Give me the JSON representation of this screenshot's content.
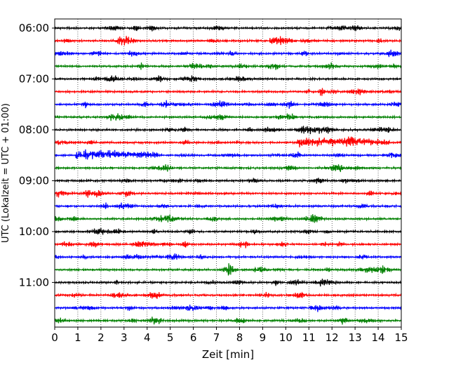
{
  "chart_data": {
    "type": "line",
    "title": "",
    "xlabel": "Zeit  [min]",
    "ylabel": "UTC (Lokalzeit = UTC + 01:00)",
    "xlim": [
      0,
      15
    ],
    "x_ticks": [
      0,
      1,
      2,
      3,
      4,
      5,
      6,
      7,
      8,
      9,
      10,
      11,
      12,
      13,
      14,
      15
    ],
    "x_tick_labels": [
      "0",
      "1",
      "2",
      "3",
      "4",
      "5",
      "6",
      "7",
      "8",
      "9",
      "10",
      "11",
      "12",
      "13",
      "14",
      "15"
    ],
    "y_tick_labels": [
      "06:00",
      "07:00",
      "08:00",
      "09:00",
      "10:00",
      "11:00"
    ],
    "y_tick_rows": [
      0,
      4,
      8,
      12,
      16,
      20
    ],
    "row_start_times": [
      "06:00",
      "06:15",
      "06:30",
      "06:45",
      "07:00",
      "07:15",
      "07:30",
      "07:45",
      "08:00",
      "08:15",
      "08:30",
      "08:45",
      "09:00",
      "09:15",
      "09:30",
      "09:45",
      "10:00",
      "10:15",
      "10:30",
      "10:45",
      "11:00",
      "11:15",
      "11:30",
      "11:45"
    ],
    "color_cycle": [
      "#000000",
      "#ff0000",
      "#0000ff",
      "#008000"
    ],
    "x_grid": true,
    "x_grid_style": "dotted",
    "legend": false,
    "notable_events": [
      {
        "row": 9,
        "x_start": 10.5,
        "x_end": 14.5,
        "amplitude": "large"
      },
      {
        "row": 10,
        "x_start": 0.9,
        "x_end": 4.5,
        "amplitude": "large"
      }
    ]
  }
}
